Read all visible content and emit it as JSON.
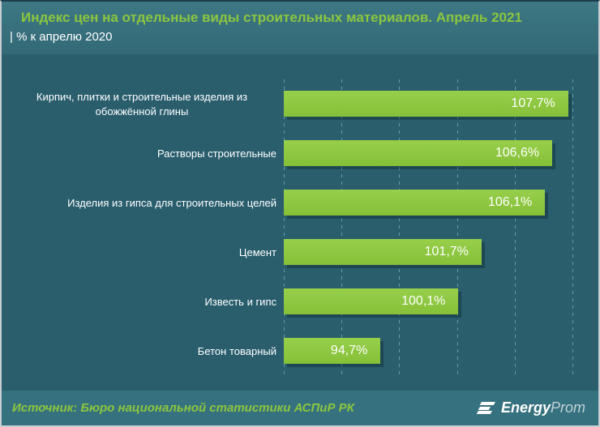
{
  "header": {
    "title": "Индекс цен на отдельные виды строительных материалов. Апрель 2021",
    "subtitle": "| % к апрелю 2020"
  },
  "chart_data": {
    "type": "bar",
    "orientation": "horizontal",
    "title": "Индекс цен на отдельные виды строительных материалов. Апрель 2021 | % к апрелю 2020",
    "categories": [
      "Кирпич, плитки и строительные изделия из обожжённой глины",
      "Растворы строительные",
      "Изделия из гипса для строительных целей",
      "Цемент",
      "Известь и гипс",
      "Бетон товарный"
    ],
    "values": [
      107.7,
      106.6,
      106.1,
      101.7,
      100.1,
      94.7
    ],
    "value_labels": [
      "107,7%",
      "106,6%",
      "106,1%",
      "101,7%",
      "100,1%",
      "94,7%"
    ],
    "xlabel": "",
    "ylabel": "",
    "xlim": [
      88,
      108
    ],
    "gridline_step": 4,
    "grid": true,
    "legend": "none",
    "value_labels_position": "inside-end"
  },
  "footer": {
    "source": "Источник: Бюро национальной статистики АСПиР РК",
    "logo": {
      "icon": "energyprom-e-stripes-icon",
      "bold": "Energy",
      "light": "Prom"
    }
  },
  "colors": {
    "bg_main": "#2a5e6d",
    "bg_header_top": "#3d7884",
    "bg_header_bottom": "#336977",
    "bg_footer": "#35717e",
    "bar_green": "#8dc63f",
    "title_green": "#8cc63e",
    "text_white": "#ffffff",
    "gridline": "rgba(130,200,215,0.6)",
    "border_light": "#c7ced1",
    "border_dark": "#1e3c4a",
    "logo_light": "#c3d2d8"
  }
}
